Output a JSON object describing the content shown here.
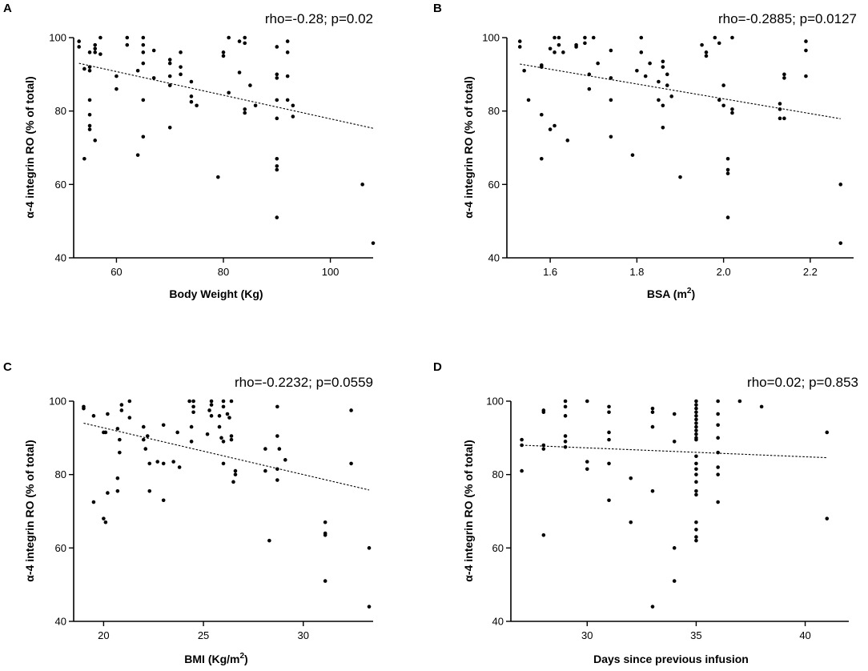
{
  "chart_data": [
    {
      "panel": "A",
      "type": "scatter",
      "annotation": "rho=-0.28; p=0.02",
      "ylabel": "α-4 integrin RO (% of total)",
      "xlabel": "Body Weight (Kg)",
      "xlabel_sup": "",
      "xlabel_suffix": "",
      "xlim": [
        52,
        108
      ],
      "ylim": [
        40,
        100
      ],
      "xticks": [
        60,
        80,
        100
      ],
      "yticks": [
        40,
        60,
        80,
        100
      ],
      "trend": {
        "x": [
          53,
          108
        ],
        "y": [
          93,
          75.3
        ]
      },
      "points": [
        [
          53,
          99
        ],
        [
          53,
          97.5
        ],
        [
          54,
          91.5
        ],
        [
          54,
          67
        ],
        [
          55,
          96
        ],
        [
          55,
          92
        ],
        [
          55,
          91
        ],
        [
          55,
          83
        ],
        [
          55,
          79
        ],
        [
          55,
          76
        ],
        [
          55,
          75
        ],
        [
          56,
          98
        ],
        [
          56,
          97
        ],
        [
          56,
          96
        ],
        [
          56,
          72
        ],
        [
          57,
          100
        ],
        [
          57,
          95.5
        ],
        [
          60,
          89.5
        ],
        [
          60,
          86
        ],
        [
          62,
          100
        ],
        [
          62,
          98
        ],
        [
          64,
          91
        ],
        [
          64,
          68
        ],
        [
          65,
          100
        ],
        [
          65,
          98
        ],
        [
          65,
          96
        ],
        [
          65,
          93
        ],
        [
          65,
          83
        ],
        [
          65,
          73
        ],
        [
          67,
          96.5
        ],
        [
          67,
          89
        ],
        [
          70,
          94
        ],
        [
          70,
          93
        ],
        [
          70,
          89.5
        ],
        [
          70,
          87
        ],
        [
          70,
          75.5
        ],
        [
          72,
          96
        ],
        [
          72,
          92
        ],
        [
          72,
          90
        ],
        [
          74,
          88
        ],
        [
          74,
          84
        ],
        [
          74,
          82.5
        ],
        [
          75,
          81.5
        ],
        [
          79,
          62
        ],
        [
          80,
          96
        ],
        [
          80,
          95
        ],
        [
          81,
          100
        ],
        [
          81,
          85
        ],
        [
          83,
          99
        ],
        [
          83,
          90.5
        ],
        [
          84,
          100
        ],
        [
          84,
          98.5
        ],
        [
          84,
          80.5
        ],
        [
          84,
          79.5
        ],
        [
          85,
          87
        ],
        [
          86,
          81.5
        ],
        [
          90,
          97.5
        ],
        [
          90,
          90
        ],
        [
          90,
          89
        ],
        [
          90,
          83
        ],
        [
          90,
          78
        ],
        [
          90,
          67
        ],
        [
          90,
          65
        ],
        [
          90,
          64
        ],
        [
          90,
          51
        ],
        [
          92,
          99
        ],
        [
          92,
          96
        ],
        [
          92,
          89.5
        ],
        [
          92,
          83
        ],
        [
          93,
          81.5
        ],
        [
          93,
          78.5
        ],
        [
          106,
          60
        ],
        [
          108,
          44
        ]
      ]
    },
    {
      "panel": "B",
      "type": "scatter",
      "annotation": "rho=-0.2885; p=0.0127",
      "ylabel": "α-4 integrin RO (% of total)",
      "xlabel": "BSA (m",
      "xlabel_sup": "2",
      "xlabel_suffix": ")",
      "xlim": [
        1.5,
        2.3
      ],
      "ylim": [
        40,
        100
      ],
      "xticks": [
        1.6,
        1.8,
        2.0,
        2.2
      ],
      "yticks": [
        40,
        60,
        80,
        100
      ],
      "trend": {
        "x": [
          1.53,
          2.27
        ],
        "y": [
          92.8,
          77.9
        ]
      },
      "points": [
        [
          1.53,
          99
        ],
        [
          1.53,
          97.5
        ],
        [
          1.54,
          91
        ],
        [
          1.55,
          83
        ],
        [
          1.58,
          92.5
        ],
        [
          1.58,
          92
        ],
        [
          1.58,
          79
        ],
        [
          1.58,
          67
        ],
        [
          1.6,
          97
        ],
        [
          1.6,
          75
        ],
        [
          1.61,
          100
        ],
        [
          1.61,
          96
        ],
        [
          1.61,
          76
        ],
        [
          1.62,
          100
        ],
        [
          1.62,
          98
        ],
        [
          1.63,
          96
        ],
        [
          1.64,
          72
        ],
        [
          1.66,
          98
        ],
        [
          1.66,
          97.5
        ],
        [
          1.68,
          100
        ],
        [
          1.68,
          98.5
        ],
        [
          1.69,
          90
        ],
        [
          1.69,
          86
        ],
        [
          1.7,
          100
        ],
        [
          1.71,
          93
        ],
        [
          1.74,
          96.5
        ],
        [
          1.74,
          89
        ],
        [
          1.74,
          83
        ],
        [
          1.74,
          73
        ],
        [
          1.79,
          68
        ],
        [
          1.8,
          91
        ],
        [
          1.81,
          100
        ],
        [
          1.81,
          96
        ],
        [
          1.82,
          89.5
        ],
        [
          1.83,
          93
        ],
        [
          1.85,
          88
        ],
        [
          1.85,
          83
        ],
        [
          1.86,
          93.5
        ],
        [
          1.86,
          92
        ],
        [
          1.86,
          81.5
        ],
        [
          1.86,
          75.5
        ],
        [
          1.87,
          90
        ],
        [
          1.87,
          87
        ],
        [
          1.88,
          84
        ],
        [
          1.9,
          62
        ],
        [
          1.95,
          98
        ],
        [
          1.96,
          96
        ],
        [
          1.96,
          95
        ],
        [
          1.98,
          100
        ],
        [
          1.99,
          98.5
        ],
        [
          1.99,
          83
        ],
        [
          2.0,
          87
        ],
        [
          2.0,
          81.5
        ],
        [
          2.01,
          67
        ],
        [
          2.01,
          64
        ],
        [
          2.01,
          63
        ],
        [
          2.01,
          51
        ],
        [
          2.02,
          100
        ],
        [
          2.02,
          80.5
        ],
        [
          2.02,
          79.5
        ],
        [
          2.13,
          82
        ],
        [
          2.13,
          80.5
        ],
        [
          2.13,
          78
        ],
        [
          2.14,
          90
        ],
        [
          2.14,
          89
        ],
        [
          2.14,
          78
        ],
        [
          2.19,
          99
        ],
        [
          2.19,
          96.5
        ],
        [
          2.19,
          89.5
        ],
        [
          2.27,
          60
        ],
        [
          2.27,
          44
        ]
      ]
    },
    {
      "panel": "C",
      "type": "scatter",
      "annotation": "rho=-0.2232; p=0.0559",
      "ylabel": "α-4 integrin RO (% of total)",
      "xlabel": "BMI (Kg/m",
      "xlabel_sup": "2",
      "xlabel_suffix": ")",
      "xlim": [
        18.5,
        33.5
      ],
      "ylim": [
        40,
        100
      ],
      "xticks": [
        20,
        25,
        30
      ],
      "yticks": [
        40,
        60,
        80,
        100
      ],
      "trend": {
        "x": [
          19,
          33.3
        ],
        "y": [
          94,
          75.8
        ]
      },
      "points": [
        [
          19,
          98.5
        ],
        [
          19,
          98
        ],
        [
          19.5,
          96
        ],
        [
          19.5,
          72.5
        ],
        [
          20,
          91.5
        ],
        [
          20,
          68
        ],
        [
          20.1,
          91.5
        ],
        [
          20.1,
          67
        ],
        [
          20.2,
          96.5
        ],
        [
          20.2,
          75
        ],
        [
          20.7,
          92.5
        ],
        [
          20.7,
          79
        ],
        [
          20.7,
          75.5
        ],
        [
          20.8,
          89.5
        ],
        [
          20.8,
          86
        ],
        [
          20.9,
          99
        ],
        [
          20.9,
          97.5
        ],
        [
          21.3,
          100
        ],
        [
          21.3,
          95.5
        ],
        [
          22,
          93
        ],
        [
          22,
          89.5
        ],
        [
          22.1,
          87
        ],
        [
          22.2,
          90.5
        ],
        [
          22.3,
          83
        ],
        [
          22.3,
          75.5
        ],
        [
          22.7,
          83.5
        ],
        [
          23,
          93.5
        ],
        [
          23,
          83
        ],
        [
          23,
          73
        ],
        [
          23.5,
          83.5
        ],
        [
          23.7,
          91.5
        ],
        [
          23.8,
          82
        ],
        [
          24.3,
          100
        ],
        [
          24.4,
          93
        ],
        [
          24.4,
          89
        ],
        [
          24.5,
          100
        ],
        [
          24.5,
          98.5
        ],
        [
          24.5,
          97
        ],
        [
          25.2,
          91
        ],
        [
          25.3,
          97.5
        ],
        [
          25.4,
          99
        ],
        [
          25.4,
          100
        ],
        [
          25.4,
          96
        ],
        [
          25.8,
          93
        ],
        [
          25.8,
          96
        ],
        [
          25.9,
          90
        ],
        [
          26,
          100
        ],
        [
          26,
          98.5
        ],
        [
          26,
          89
        ],
        [
          26,
          83
        ],
        [
          26.2,
          96.5
        ],
        [
          26.3,
          95.5
        ],
        [
          26.4,
          100
        ],
        [
          26.4,
          90.5
        ],
        [
          26.4,
          89.5
        ],
        [
          26.5,
          78
        ],
        [
          26.6,
          81
        ],
        [
          26.6,
          80
        ],
        [
          28.1,
          87
        ],
        [
          28.1,
          81
        ],
        [
          28.3,
          62
        ],
        [
          28.7,
          98.5
        ],
        [
          28.7,
          90.5
        ],
        [
          28.7,
          81.5
        ],
        [
          28.7,
          78.5
        ],
        [
          28.8,
          87
        ],
        [
          29.1,
          84
        ],
        [
          31.1,
          67
        ],
        [
          31.1,
          64
        ],
        [
          31.1,
          63.5
        ],
        [
          31.1,
          51
        ],
        [
          32.4,
          97.5
        ],
        [
          32.4,
          83
        ],
        [
          33.3,
          60
        ],
        [
          33.3,
          44
        ]
      ]
    },
    {
      "panel": "D",
      "type": "scatter",
      "annotation": "rho=0.02; p=0.853",
      "ylabel": "α-4 integrin RO (% of total)",
      "xlabel": "Days since previous infusion",
      "xlabel_sup": "",
      "xlabel_suffix": "",
      "xlim": [
        26.5,
        42
      ],
      "ylim": [
        40,
        100
      ],
      "xticks": [
        30,
        35,
        40
      ],
      "yticks": [
        40,
        60,
        80,
        100
      ],
      "trend": {
        "x": [
          27,
          41
        ],
        "y": [
          88,
          84.6
        ]
      },
      "points": [
        [
          27,
          89.5
        ],
        [
          27,
          88
        ],
        [
          27,
          81
        ],
        [
          28,
          97.5
        ],
        [
          28,
          97
        ],
        [
          28,
          88
        ],
        [
          28,
          87
        ],
        [
          28,
          63.5
        ],
        [
          29,
          100
        ],
        [
          29,
          98.5
        ],
        [
          29,
          96
        ],
        [
          29,
          90.5
        ],
        [
          29,
          89
        ],
        [
          29,
          87.5
        ],
        [
          30,
          100
        ],
        [
          30,
          83.5
        ],
        [
          30,
          81.5
        ],
        [
          31,
          98.5
        ],
        [
          31,
          97
        ],
        [
          31,
          91.5
        ],
        [
          31,
          89.5
        ],
        [
          31,
          83
        ],
        [
          31,
          73
        ],
        [
          32,
          79
        ],
        [
          32,
          67
        ],
        [
          33,
          98
        ],
        [
          33,
          97
        ],
        [
          33,
          93
        ],
        [
          33,
          75.5
        ],
        [
          33,
          44
        ],
        [
          34,
          96.5
        ],
        [
          34,
          89
        ],
        [
          34,
          60
        ],
        [
          34,
          51
        ],
        [
          35,
          100
        ],
        [
          35,
          99
        ],
        [
          35,
          98
        ],
        [
          35,
          97
        ],
        [
          35,
          96
        ],
        [
          35,
          95
        ],
        [
          35,
          94
        ],
        [
          35,
          93
        ],
        [
          35,
          92
        ],
        [
          35,
          91
        ],
        [
          35,
          90
        ],
        [
          35,
          89.5
        ],
        [
          35,
          85
        ],
        [
          35,
          83
        ],
        [
          35,
          81.5
        ],
        [
          35,
          80
        ],
        [
          35,
          78
        ],
        [
          35,
          75.5
        ],
        [
          35,
          74.5
        ],
        [
          35,
          67
        ],
        [
          35,
          65
        ],
        [
          35,
          63
        ],
        [
          35,
          62
        ],
        [
          36,
          100
        ],
        [
          36,
          96.5
        ],
        [
          36,
          93.5
        ],
        [
          36,
          90
        ],
        [
          36,
          86
        ],
        [
          36,
          82
        ],
        [
          36,
          80
        ],
        [
          36,
          72.5
        ],
        [
          37,
          100
        ],
        [
          38,
          98.5
        ],
        [
          41,
          91.5
        ],
        [
          41,
          68
        ]
      ]
    }
  ]
}
